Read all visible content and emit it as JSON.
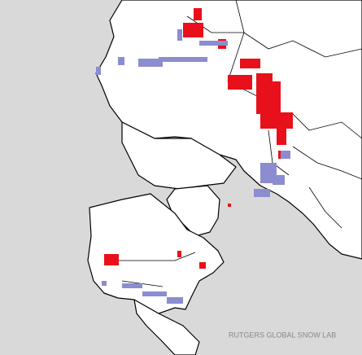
{
  "credit": "RUTGERS GLOBAL SNOW LAB"
}
